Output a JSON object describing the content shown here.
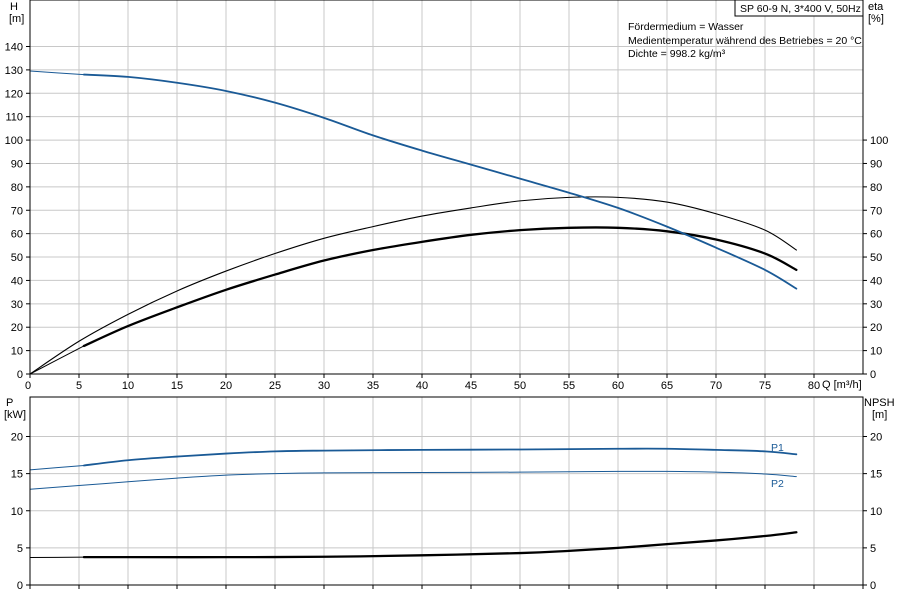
{
  "title_box": "SP 60-9 N, 3*400 V, 50Hz",
  "info_lines": [
    "Fördermedium = Wasser",
    "Medientemperatur während des Betriebes = 20 °C",
    "Dichte = 998.2 kg/m³"
  ],
  "colors": {
    "blue": "#1a5a96",
    "black": "#000000",
    "grid": "#c8c8c8"
  },
  "chart_data": [
    {
      "type": "line",
      "y_left_label": [
        "H",
        "[m]"
      ],
      "y_right_label": [
        "eta",
        "[%]"
      ],
      "x_label": "Q [m³/h]",
      "xlim": [
        0,
        85
      ],
      "x_ticks": [
        0,
        5,
        10,
        15,
        20,
        25,
        30,
        35,
        40,
        45,
        50,
        55,
        60,
        65,
        70,
        75,
        80
      ],
      "y_left_lim": [
        0,
        150
      ],
      "y_left_ticks": [
        0,
        10,
        20,
        30,
        40,
        50,
        60,
        70,
        80,
        90,
        100,
        110,
        120,
        130,
        140
      ],
      "y_right_ticks": [
        0,
        10,
        20,
        30,
        40,
        50,
        60,
        70,
        80,
        90,
        100
      ],
      "grid": true,
      "series": [
        {
          "color": "#1a5a96",
          "style": "head",
          "points": [
            [
              0,
              129.5
            ],
            [
              5.5,
              128
            ],
            [
              10,
              127
            ],
            [
              15,
              124.5
            ],
            [
              20,
              121
            ],
            [
              25,
              116
            ],
            [
              30,
              109.5
            ],
            [
              35,
              102
            ],
            [
              40,
              95.5
            ],
            [
              45,
              89.5
            ],
            [
              50,
              83.5
            ],
            [
              55,
              77.5
            ],
            [
              60,
              71
            ],
            [
              65,
              63
            ],
            [
              70,
              54
            ],
            [
              75,
              44.5
            ],
            [
              78.2,
              36.5
            ]
          ]
        },
        {
          "color": "#000000",
          "style": "eta_thin",
          "points": [
            [
              0,
              0
            ],
            [
              5,
              14
            ],
            [
              10,
              25.5
            ],
            [
              15,
              35.5
            ],
            [
              20,
              44
            ],
            [
              25,
              51.5
            ],
            [
              30,
              58
            ],
            [
              35,
              63
            ],
            [
              40,
              67.5
            ],
            [
              45,
              71
            ],
            [
              50,
              74
            ],
            [
              55,
              75.5
            ],
            [
              60,
              75.5
            ],
            [
              65,
              73.5
            ],
            [
              70,
              68.5
            ],
            [
              75,
              61.5
            ],
            [
              78.2,
              53
            ]
          ]
        },
        {
          "color": "#000000",
          "style": "eta_thick",
          "points": [
            [
              5.5,
              12
            ],
            [
              10,
              20.5
            ],
            [
              15,
              28.5
            ],
            [
              20,
              36
            ],
            [
              25,
              42.5
            ],
            [
              30,
              48.5
            ],
            [
              35,
              53
            ],
            [
              40,
              56.5
            ],
            [
              45,
              59.5
            ],
            [
              50,
              61.5
            ],
            [
              55,
              62.5
            ],
            [
              60,
              62.5
            ],
            [
              65,
              61
            ],
            [
              70,
              57.5
            ],
            [
              75,
              51.5
            ],
            [
              78.2,
              44.5
            ]
          ]
        }
      ]
    },
    {
      "type": "line",
      "y_left_label": [
        "P",
        "[kW]"
      ],
      "y_right_label": [
        "NPSH",
        "[m]"
      ],
      "xlim": [
        0,
        85
      ],
      "x_ticks": [
        0,
        5,
        10,
        15,
        20,
        25,
        30,
        35,
        40,
        45,
        50,
        55,
        60,
        65,
        70,
        75,
        80,
        85
      ],
      "y_lim": [
        0,
        22.5
      ],
      "y_left_ticks": [
        0,
        5,
        10,
        15,
        20
      ],
      "y_right_ticks": [
        0,
        5,
        10,
        15,
        20
      ],
      "grid": true,
      "series": [
        {
          "name": "P1",
          "color": "#1a5a96",
          "style": "thick",
          "points": [
            [
              0,
              15.5
            ],
            [
              5.5,
              16.1
            ],
            [
              10,
              16.8
            ],
            [
              15,
              17.3
            ],
            [
              20,
              17.7
            ],
            [
              25,
              18.0
            ],
            [
              30,
              18.1
            ],
            [
              40,
              18.2
            ],
            [
              50,
              18.25
            ],
            [
              60,
              18.35
            ],
            [
              65,
              18.35
            ],
            [
              70,
              18.2
            ],
            [
              75,
              18.0
            ],
            [
              78.2,
              17.6
            ]
          ]
        },
        {
          "name": "P2",
          "color": "#1a5a96",
          "style": "thin",
          "points": [
            [
              0,
              12.9
            ],
            [
              5,
              13.4
            ],
            [
              10,
              13.9
            ],
            [
              15,
              14.4
            ],
            [
              20,
              14.8
            ],
            [
              25,
              15.0
            ],
            [
              30,
              15.1
            ],
            [
              40,
              15.15
            ],
            [
              50,
              15.2
            ],
            [
              60,
              15.3
            ],
            [
              65,
              15.3
            ],
            [
              70,
              15.2
            ],
            [
              75,
              14.95
            ],
            [
              78.2,
              14.6
            ]
          ]
        },
        {
          "color": "#000000",
          "style": "npsh_thin",
          "points": [
            [
              0,
              3.7
            ],
            [
              5.5,
              3.75
            ]
          ]
        },
        {
          "color": "#000000",
          "style": "npsh_thick",
          "points": [
            [
              5.5,
              3.75
            ],
            [
              10,
              3.75
            ],
            [
              20,
              3.75
            ],
            [
              30,
              3.8
            ],
            [
              40,
              4.0
            ],
            [
              50,
              4.3
            ],
            [
              55,
              4.6
            ],
            [
              60,
              5.0
            ],
            [
              65,
              5.5
            ],
            [
              70,
              6.0
            ],
            [
              75,
              6.6
            ],
            [
              78.2,
              7.1
            ]
          ]
        }
      ]
    }
  ]
}
